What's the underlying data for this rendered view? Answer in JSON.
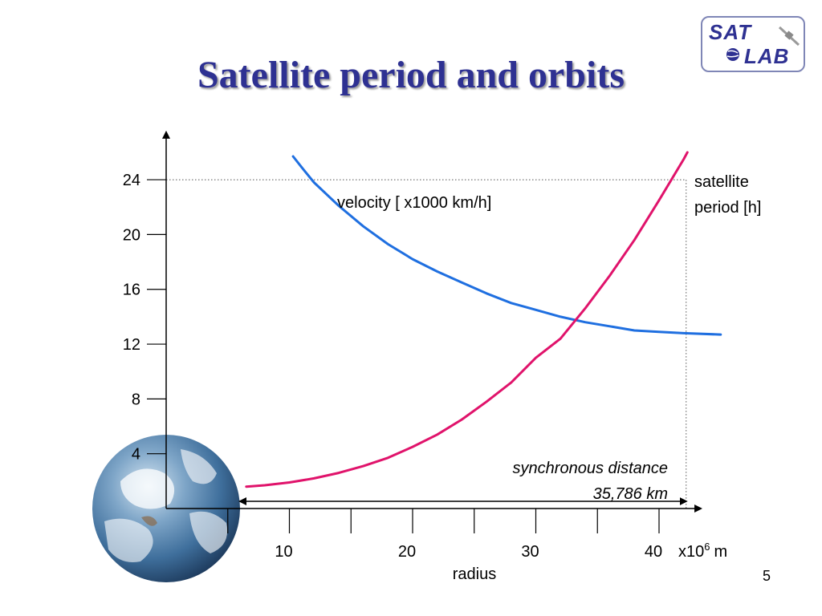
{
  "slide": {
    "title": "Satellite period and orbits",
    "page_number": "5"
  },
  "logo": {
    "line1": "SAT",
    "line2": "LAB",
    "icon": "satellite-globe-icon"
  },
  "chart_data": {
    "type": "line",
    "xlabel": "radius",
    "x_unit_label": "x10",
    "x_unit_exponent": "6",
    "x_unit_suffix": "m",
    "x_ticks": [
      5,
      10,
      15,
      20,
      25,
      30,
      35,
      40
    ],
    "x_tick_labels": [
      {
        "value": 10,
        "label": "10"
      },
      {
        "value": 20,
        "label": "20"
      },
      {
        "value": 30,
        "label": "30"
      },
      {
        "value": 40,
        "label": "40"
      }
    ],
    "xlim": [
      0,
      43
    ],
    "y_ticks": [
      4,
      8,
      12,
      16,
      20,
      24
    ],
    "y_tick_labels": [
      "4",
      "8",
      "12",
      "16",
      "20",
      "24"
    ],
    "ylim": [
      0,
      27
    ],
    "series": [
      {
        "name": "velocity [ x1000 km/h]",
        "color": "#1f6fe0",
        "x": [
          10.3,
          11,
          12,
          14,
          16,
          18,
          20,
          22,
          24,
          26,
          28,
          30,
          32,
          34,
          36,
          38,
          40,
          42,
          45
        ],
        "y": [
          25.7,
          24.9,
          23.8,
          22.1,
          20.6,
          19.3,
          18.2,
          17.3,
          16.5,
          15.7,
          15.0,
          14.5,
          14.0,
          13.6,
          13.3,
          13.0,
          12.9,
          12.8,
          12.7
        ]
      },
      {
        "name": "satellite period [h]",
        "color": "#e0136b",
        "x": [
          6.5,
          8,
          10,
          12,
          14,
          16,
          18,
          20,
          22,
          24,
          26,
          28,
          30,
          32,
          34,
          36,
          38,
          40,
          42,
          42.3
        ],
        "y": [
          1.6,
          1.7,
          1.9,
          2.2,
          2.6,
          3.1,
          3.7,
          4.5,
          5.4,
          6.5,
          7.8,
          9.2,
          11.0,
          12.4,
          14.6,
          17.0,
          19.6,
          22.5,
          25.5,
          26.0
        ]
      }
    ],
    "annotations": {
      "velocity_label": "velocity [ x1000 km/h]",
      "period_label_line1": "satellite",
      "period_label_line2": "period [h]",
      "sync_label_line1": "synchronous distance",
      "sync_label_line2": "35,786 km"
    },
    "reference_lines": {
      "synchronous_radius": 42.2,
      "period_24h": 24
    },
    "grid": false
  }
}
